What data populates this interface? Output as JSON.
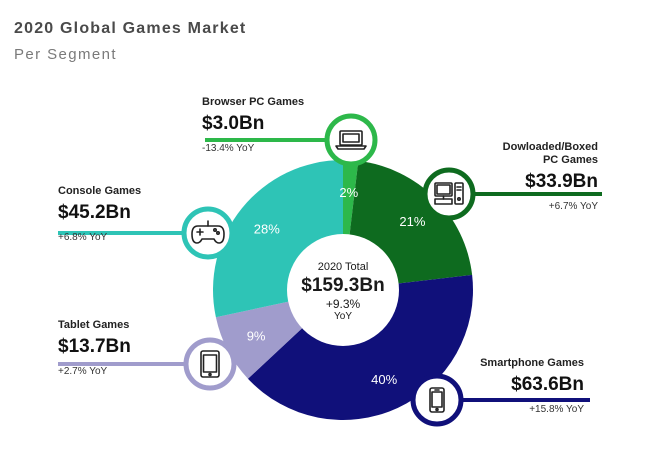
{
  "header": {
    "title": "2020 Global Games Market",
    "subtitle": "Per Segment"
  },
  "center": {
    "title": "2020 Total",
    "value": "$159.3Bn",
    "yoy_value": "+9.3%",
    "yoy_unit": "YoY"
  },
  "colors": {
    "background": "#ffffff",
    "center_circle": "#ffffff",
    "icon_ring_fill": "#ffffff"
  },
  "chart_data": {
    "type": "pie",
    "slices": [
      {
        "name": "Browser PC Games",
        "value": 3.0,
        "display_value": "$3.0Bn",
        "percent": 2,
        "percent_label": "2%",
        "yoy": "-13.4% YoY",
        "color": "#2db84a",
        "icon": "laptop-icon"
      },
      {
        "name": "Dowloaded/Boxed PC Games",
        "name_lines": [
          "Dowloaded/Boxed",
          "PC Games"
        ],
        "value": 33.9,
        "display_value": "$33.9Bn",
        "percent": 21,
        "percent_label": "21%",
        "yoy": "+6.7% YoY",
        "color": "#0e6b1f",
        "icon": "desktop-pc-icon"
      },
      {
        "name": "Smartphone Games",
        "value": 63.6,
        "display_value": "$63.6Bn",
        "percent": 40,
        "percent_label": "40%",
        "yoy": "+15.8% YoY",
        "color": "#10107a",
        "icon": "smartphone-icon"
      },
      {
        "name": "Tablet Games",
        "value": 13.7,
        "display_value": "$13.7Bn",
        "percent": 9,
        "percent_label": "9%",
        "yoy": "+2.7% YoY",
        "color": "#a09ccc",
        "icon": "tablet-icon"
      },
      {
        "name": "Console Games",
        "value": 45.2,
        "display_value": "$45.2Bn",
        "percent": 28,
        "percent_label": "28%",
        "yoy": "+6.8% YoY",
        "color": "#2ec4b6",
        "icon": "gamepad-icon"
      }
    ]
  }
}
